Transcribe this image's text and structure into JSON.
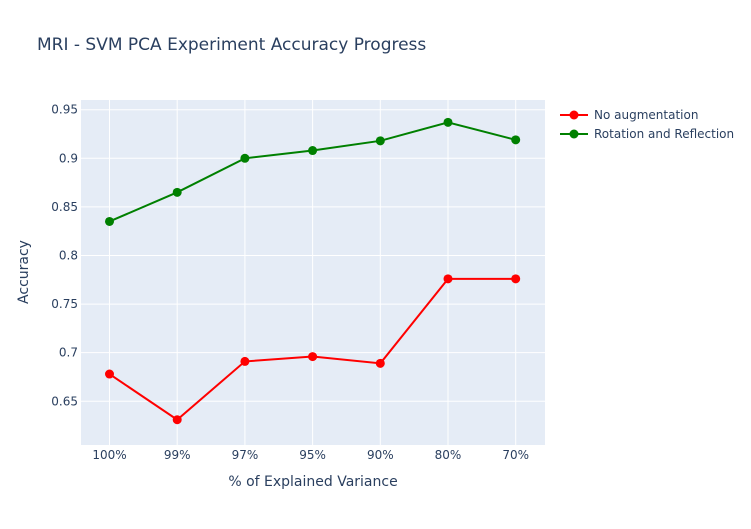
{
  "chart_data": {
    "type": "line",
    "title": "MRI - SVM PCA Experiment Accuracy Progress",
    "xlabel": "% of Explained Variance",
    "ylabel": "Accuracy",
    "categories": [
      "100%",
      "99%",
      "97%",
      "95%",
      "90%",
      "80%",
      "70%"
    ],
    "ylim": [
      0.605,
      0.96
    ],
    "yticks": [
      0.65,
      0.7,
      0.75,
      0.8,
      0.85,
      0.9,
      0.95
    ],
    "ytick_labels": [
      "0.65",
      "0.7",
      "0.75",
      "0.8",
      "0.85",
      "0.9",
      "0.95"
    ],
    "grid": true,
    "legend_position": "right",
    "series": [
      {
        "name": "No augmentation",
        "color": "#ff0000",
        "values": [
          0.678,
          0.631,
          0.691,
          0.696,
          0.689,
          0.776,
          0.776
        ]
      },
      {
        "name": "Rotation and Reflection",
        "color": "#008000",
        "values": [
          0.835,
          0.865,
          0.9,
          0.908,
          0.918,
          0.937,
          0.919
        ]
      }
    ],
    "colors": {
      "plot_background": "#e5ecf6",
      "grid": "#ffffff",
      "text": "#2a3f5f",
      "title": "#2a3f5f"
    }
  }
}
